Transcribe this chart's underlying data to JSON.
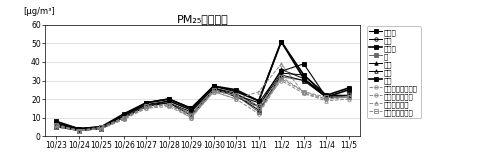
{
  "title": "PM₂₅質量濃度",
  "ylabel": "[μg/m³]",
  "xlabels": [
    "10/23",
    "10/24",
    "10/25",
    "10/26",
    "10/27",
    "10/28",
    "10/29",
    "10/30",
    "10/31",
    "11/1",
    "11/2",
    "11/3",
    "11/4",
    "11/5"
  ],
  "ylim": [
    0,
    60
  ],
  "yticks": [
    0,
    10,
    20,
    30,
    40,
    50,
    60
  ],
  "series": [
    {
      "label": "東大潄",
      "color": "#000000",
      "marker": "s",
      "markersize": 2.5,
      "linestyle": "-",
      "linewidth": 0.8,
      "fillstyle": "full",
      "values": [
        5,
        3,
        4,
        10,
        16,
        19,
        14,
        26,
        22,
        18,
        35,
        39,
        21,
        22
      ]
    },
    {
      "label": "大気",
      "color": "#000000",
      "marker": "o",
      "markersize": 2.5,
      "linestyle": "-",
      "linewidth": 0.7,
      "fillstyle": "none",
      "values": [
        6,
        4,
        5,
        10,
        17,
        18,
        13,
        26,
        21,
        16,
        34,
        33,
        22,
        22
      ]
    },
    {
      "label": "大阪市",
      "color": "#000000",
      "marker": "s",
      "markersize": 3.5,
      "linestyle": "-",
      "linewidth": 1.2,
      "fillstyle": "full",
      "values": [
        7,
        4,
        5,
        11,
        18,
        20,
        15,
        27,
        24,
        19,
        51,
        33,
        22,
        26
      ]
    },
    {
      "label": "堤",
      "color": "#666666",
      "marker": "s",
      "markersize": 2.5,
      "linestyle": "-",
      "linewidth": 0.7,
      "fillstyle": "full",
      "values": [
        6,
        3,
        4,
        10,
        16,
        18,
        12,
        25,
        22,
        13,
        32,
        30,
        21,
        22
      ]
    },
    {
      "label": "豊中",
      "color": "#000000",
      "marker": "^",
      "markersize": 2.5,
      "linestyle": "-",
      "linewidth": 0.7,
      "fillstyle": "full",
      "values": [
        6,
        3,
        4,
        11,
        17,
        19,
        14,
        26,
        23,
        16,
        36,
        31,
        22,
        22
      ]
    },
    {
      "label": "同田",
      "color": "#000000",
      "marker": "^",
      "markersize": 2.5,
      "linestyle": "-",
      "linewidth": 0.7,
      "fillstyle": "none",
      "values": [
        6,
        3,
        5,
        10,
        16,
        18,
        11,
        25,
        22,
        14,
        33,
        30,
        21,
        21
      ]
    },
    {
      "label": "八尾",
      "color": "#000000",
      "marker": "s",
      "markersize": 3.5,
      "linestyle": "-",
      "linewidth": 1.2,
      "fillstyle": "full",
      "values": [
        8,
        4,
        5,
        12,
        18,
        20,
        15,
        27,
        25,
        19,
        51,
        31,
        21,
        25
      ]
    },
    {
      "label": "河南長野（自動）",
      "color": "#888888",
      "marker": "o",
      "markersize": 2.5,
      "linestyle": "--",
      "linewidth": 0.7,
      "fillstyle": "none",
      "values": [
        5,
        3,
        4,
        9,
        16,
        17,
        10,
        24,
        20,
        12,
        31,
        24,
        20,
        21
      ]
    },
    {
      "label": "大阪市（自動）",
      "color": "#888888",
      "marker": "o",
      "markersize": 2.5,
      "linestyle": "--",
      "linewidth": 0.7,
      "fillstyle": "none",
      "values": [
        6,
        3,
        4,
        10,
        15,
        17,
        11,
        24,
        22,
        15,
        30,
        23,
        20,
        21
      ]
    },
    {
      "label": "同田（自動）",
      "color": "#888888",
      "marker": "^",
      "markersize": 2.5,
      "linestyle": "--",
      "linewidth": 0.7,
      "fillstyle": "none",
      "values": [
        5,
        3,
        4,
        9,
        15,
        16,
        10,
        24,
        20,
        24,
        39,
        23,
        19,
        20
      ]
    },
    {
      "label": "東大阪（自動）",
      "color": "#888888",
      "marker": "s",
      "markersize": 2.5,
      "linestyle": "--",
      "linewidth": 0.7,
      "fillstyle": "none",
      "values": [
        6,
        3,
        5,
        10,
        16,
        17,
        11,
        25,
        22,
        16,
        32,
        24,
        21,
        21
      ]
    }
  ],
  "background_color": "#ffffff",
  "legend_fontsize": 5,
  "title_fontsize": 8,
  "tick_fontsize": 5.5,
  "ylabel_fontsize": 6
}
